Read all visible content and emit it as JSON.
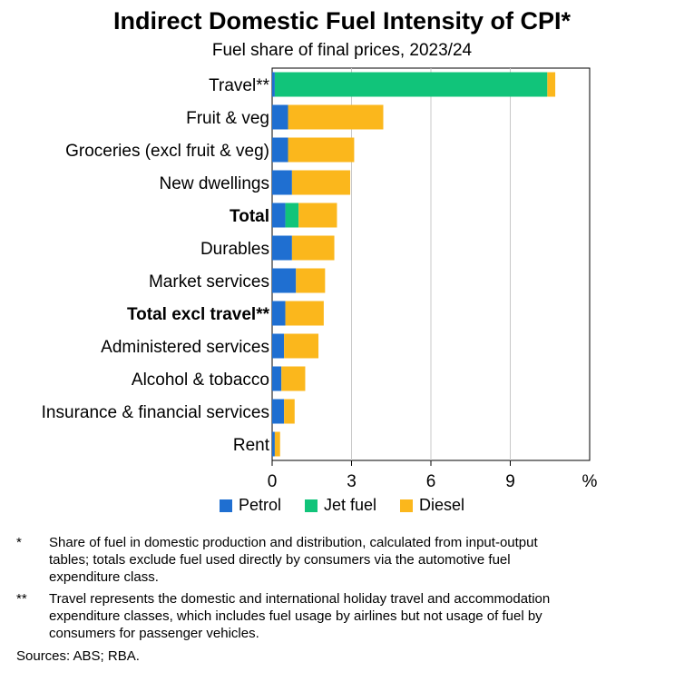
{
  "chart_data": {
    "type": "bar",
    "orientation": "horizontal",
    "stacked": true,
    "title": "Indirect Domestic Fuel Intensity of CPI*",
    "subtitle": "Fuel share of final prices, 2023/24",
    "unit": "%",
    "xlim": [
      0,
      12
    ],
    "xticks": [
      "0",
      "3",
      "6",
      "9"
    ],
    "grid": true,
    "legend_position": "bottom",
    "categories": [
      "Travel**",
      "Fruit & veg",
      "Groceries (excl fruit & veg)",
      "New dwellings",
      "Total",
      "Durables",
      "Market services",
      "Total excl travel**",
      "Administered services",
      "Alcohol & tobacco",
      "Insurance & financial services",
      "Rent"
    ],
    "bold_categories": [
      "Total",
      "Total excl travel**"
    ],
    "series": [
      {
        "name": "Petrol",
        "color": "#1f6fd1",
        "values": [
          0.1,
          0.6,
          0.6,
          0.75,
          0.5,
          0.75,
          0.9,
          0.5,
          0.45,
          0.35,
          0.45,
          0.1
        ]
      },
      {
        "name": "Jet fuel",
        "color": "#11c47a",
        "values": [
          10.3,
          0,
          0,
          0,
          0.5,
          0,
          0,
          0,
          0,
          0,
          0,
          0
        ]
      },
      {
        "name": "Diesel",
        "color": "#fbb71c",
        "values": [
          0.3,
          3.6,
          2.5,
          2.2,
          1.45,
          1.6,
          1.1,
          1.45,
          1.3,
          0.9,
          0.4,
          0.2
        ]
      }
    ]
  },
  "footnotes": [
    {
      "mark": "*",
      "text": "Share of fuel in domestic production and distribution, calculated from input-output tables; totals exclude fuel used directly by consumers via the automotive fuel expenditure class."
    },
    {
      "mark": "**",
      "text": "Travel represents the domestic and international holiday travel and accommodation expenditure classes, which includes fuel usage by airlines but not usage of fuel by consumers for passenger vehicles."
    }
  ],
  "sources": "Sources: ABS; RBA."
}
